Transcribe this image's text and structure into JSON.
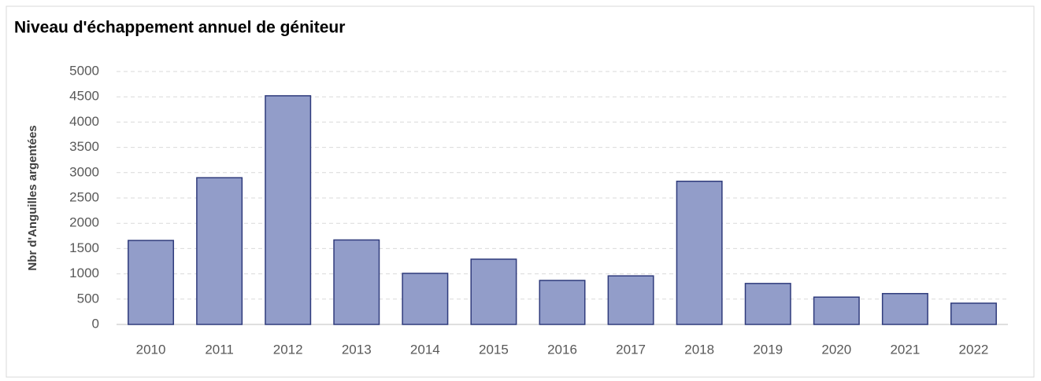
{
  "chart_data": {
    "type": "bar",
    "title": "Niveau d'échappement annuel de géniteur",
    "y_label": "Nbr d'Anguilles argentées",
    "categories": [
      "2010",
      "2011",
      "2012",
      "2013",
      "2014",
      "2015",
      "2016",
      "2017",
      "2018",
      "2019",
      "2020",
      "2021",
      "2022"
    ],
    "values": [
      1660,
      2900,
      4520,
      1670,
      1010,
      1290,
      870,
      960,
      2830,
      810,
      540,
      610,
      420
    ],
    "color": "#929dc9",
    "ylim": [
      0,
      5000
    ],
    "yticks": [
      0,
      500,
      1000,
      1500,
      2000,
      2500,
      3000,
      3500,
      4000,
      4500,
      5000
    ],
    "grid": true
  }
}
